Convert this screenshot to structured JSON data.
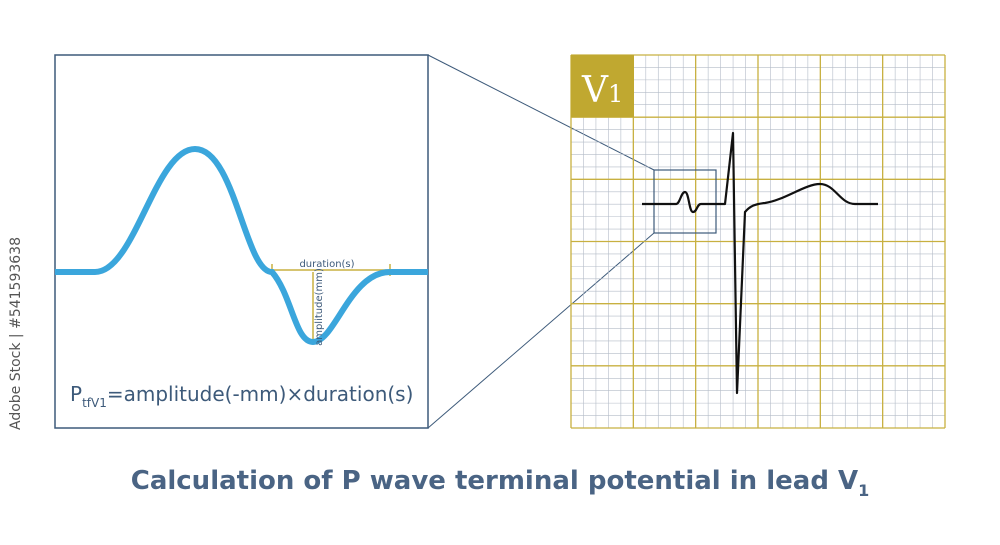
{
  "watermark": "Adobe Stock | #541593638",
  "zoom_panel": {
    "formula": {
      "main": "P",
      "subscript": "tfV1",
      "rest": "=amplitude(-mm)×duration(s)"
    },
    "duration_label": "duration(s)",
    "amplitude_label": "amplitude(mm)"
  },
  "ecg_panel": {
    "lead_label": {
      "main": "V",
      "subscript": "1"
    }
  },
  "title": {
    "main": "Calculation of P wave terminal potential in lead V",
    "subscript": "1"
  }
}
